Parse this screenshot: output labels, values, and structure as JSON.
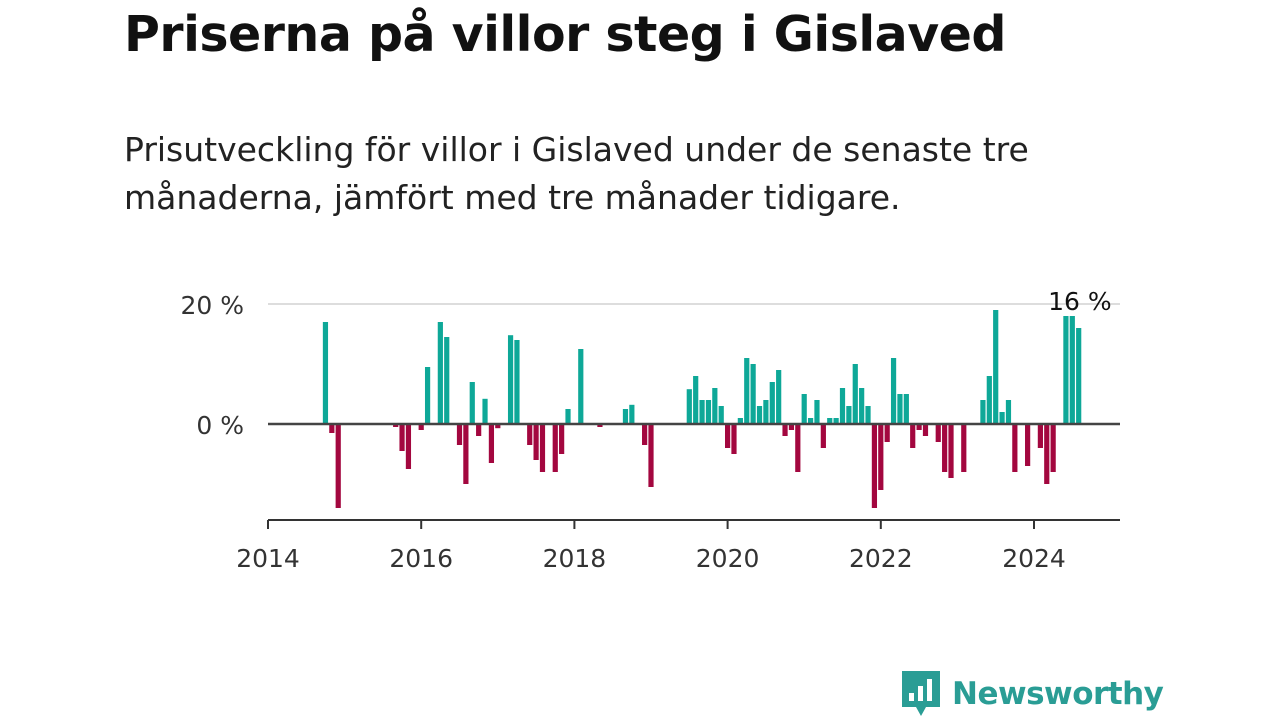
{
  "header": {
    "title": "Priserna på villor steg i Gislaved",
    "subtitle": "Prisutveckling för villor i Gislaved under de senaste tre månaderna, jämfört med tre månader tidigare."
  },
  "brand": {
    "name": "Newsworthy",
    "color": "#2a9d95",
    "icon": "newsworthy-logo-icon"
  },
  "colors": {
    "positive": "#0ea898",
    "negative": "#a3073f",
    "grid": "#dddddd",
    "zero": "#444444",
    "axis": "#333333",
    "text": "#333333"
  },
  "chart_data": {
    "type": "bar",
    "title": "Priserna på villor steg i Gislaved",
    "subtitle": "Prisutveckling för villor i Gislaved under de senaste tre månaderna, jämfört med tre månader tidigare.",
    "xlabel": "",
    "ylabel": "",
    "x_ticks": [
      "2014",
      "2016",
      "2018",
      "2020",
      "2022",
      "2024"
    ],
    "y_ticks": [
      {
        "value": 0,
        "label": "0 %"
      },
      {
        "value": 20,
        "label": "20 %"
      }
    ],
    "ylim": [
      -16,
      20
    ],
    "xlim": [
      "2014-01",
      "2025-02"
    ],
    "grid": "horizontal at 20 %",
    "annotations": [
      {
        "month": "2024-08",
        "value": 16,
        "text": "16 %"
      }
    ],
    "series": [
      {
        "data": [
          {
            "month": "2014-10",
            "value": 17
          },
          {
            "month": "2014-11",
            "value": -1.5
          },
          {
            "month": "2014-12",
            "value": -14
          },
          {
            "month": "2015-09",
            "value": -0.5
          },
          {
            "month": "2015-10",
            "value": -4.5
          },
          {
            "month": "2015-11",
            "value": -7.5
          },
          {
            "month": "2016-01",
            "value": -1
          },
          {
            "month": "2016-02",
            "value": 9.5
          },
          {
            "month": "2016-04",
            "value": 17
          },
          {
            "month": "2016-05",
            "value": 14.5
          },
          {
            "month": "2016-07",
            "value": -3.5
          },
          {
            "month": "2016-08",
            "value": -10
          },
          {
            "month": "2016-09",
            "value": 7
          },
          {
            "month": "2016-10",
            "value": -2
          },
          {
            "month": "2016-11",
            "value": 4.2
          },
          {
            "month": "2016-12",
            "value": -6.5
          },
          {
            "month": "2017-01",
            "value": -0.7
          },
          {
            "month": "2017-03",
            "value": 14.8
          },
          {
            "month": "2017-04",
            "value": 14
          },
          {
            "month": "2017-06",
            "value": -3.5
          },
          {
            "month": "2017-07",
            "value": -6
          },
          {
            "month": "2017-08",
            "value": -8
          },
          {
            "month": "2017-10",
            "value": -8
          },
          {
            "month": "2017-11",
            "value": -5
          },
          {
            "month": "2017-12",
            "value": 2.5
          },
          {
            "month": "2018-02",
            "value": 12.5
          },
          {
            "month": "2018-05",
            "value": -0.5
          },
          {
            "month": "2018-09",
            "value": 2.5
          },
          {
            "month": "2018-10",
            "value": 3.2
          },
          {
            "month": "2018-12",
            "value": -3.5
          },
          {
            "month": "2019-01",
            "value": -10.5
          },
          {
            "month": "2019-07",
            "value": 5.8
          },
          {
            "month": "2019-08",
            "value": 8
          },
          {
            "month": "2019-09",
            "value": 4
          },
          {
            "month": "2019-10",
            "value": 4
          },
          {
            "month": "2019-11",
            "value": 6
          },
          {
            "month": "2019-12",
            "value": 3
          },
          {
            "month": "2020-01",
            "value": -4
          },
          {
            "month": "2020-02",
            "value": -5
          },
          {
            "month": "2020-03",
            "value": 1
          },
          {
            "month": "2020-04",
            "value": 11
          },
          {
            "month": "2020-05",
            "value": 10
          },
          {
            "month": "2020-06",
            "value": 3
          },
          {
            "month": "2020-07",
            "value": 4
          },
          {
            "month": "2020-08",
            "value": 7
          },
          {
            "month": "2020-09",
            "value": 9
          },
          {
            "month": "2020-10",
            "value": -2
          },
          {
            "month": "2020-11",
            "value": -1
          },
          {
            "month": "2020-12",
            "value": -8
          },
          {
            "month": "2021-01",
            "value": 5
          },
          {
            "month": "2021-02",
            "value": 1
          },
          {
            "month": "2021-03",
            "value": 4
          },
          {
            "month": "2021-04",
            "value": -4
          },
          {
            "month": "2021-05",
            "value": 1
          },
          {
            "month": "2021-06",
            "value": 1
          },
          {
            "month": "2021-07",
            "value": 6
          },
          {
            "month": "2021-08",
            "value": 3
          },
          {
            "month": "2021-09",
            "value": 10
          },
          {
            "month": "2021-10",
            "value": 6
          },
          {
            "month": "2021-11",
            "value": 3
          },
          {
            "month": "2021-12",
            "value": -14
          },
          {
            "month": "2022-01",
            "value": -11
          },
          {
            "month": "2022-02",
            "value": -3
          },
          {
            "month": "2022-03",
            "value": 11
          },
          {
            "month": "2022-04",
            "value": 5
          },
          {
            "month": "2022-05",
            "value": 5
          },
          {
            "month": "2022-06",
            "value": -4
          },
          {
            "month": "2022-07",
            "value": -1
          },
          {
            "month": "2022-08",
            "value": -2
          },
          {
            "month": "2022-10",
            "value": -3
          },
          {
            "month": "2022-11",
            "value": -8
          },
          {
            "month": "2022-12",
            "value": -9
          },
          {
            "month": "2023-02",
            "value": -8
          },
          {
            "month": "2023-05",
            "value": 4
          },
          {
            "month": "2023-06",
            "value": 8
          },
          {
            "month": "2023-07",
            "value": 19
          },
          {
            "month": "2023-08",
            "value": 2
          },
          {
            "month": "2023-09",
            "value": 4
          },
          {
            "month": "2023-10",
            "value": -8
          },
          {
            "month": "2023-12",
            "value": -7
          },
          {
            "month": "2024-02",
            "value": -4
          },
          {
            "month": "2024-03",
            "value": -10
          },
          {
            "month": "2024-04",
            "value": -8
          },
          {
            "month": "2024-06",
            "value": 18
          },
          {
            "month": "2024-07",
            "value": 18
          },
          {
            "month": "2024-08",
            "value": 16
          }
        ]
      }
    ]
  }
}
